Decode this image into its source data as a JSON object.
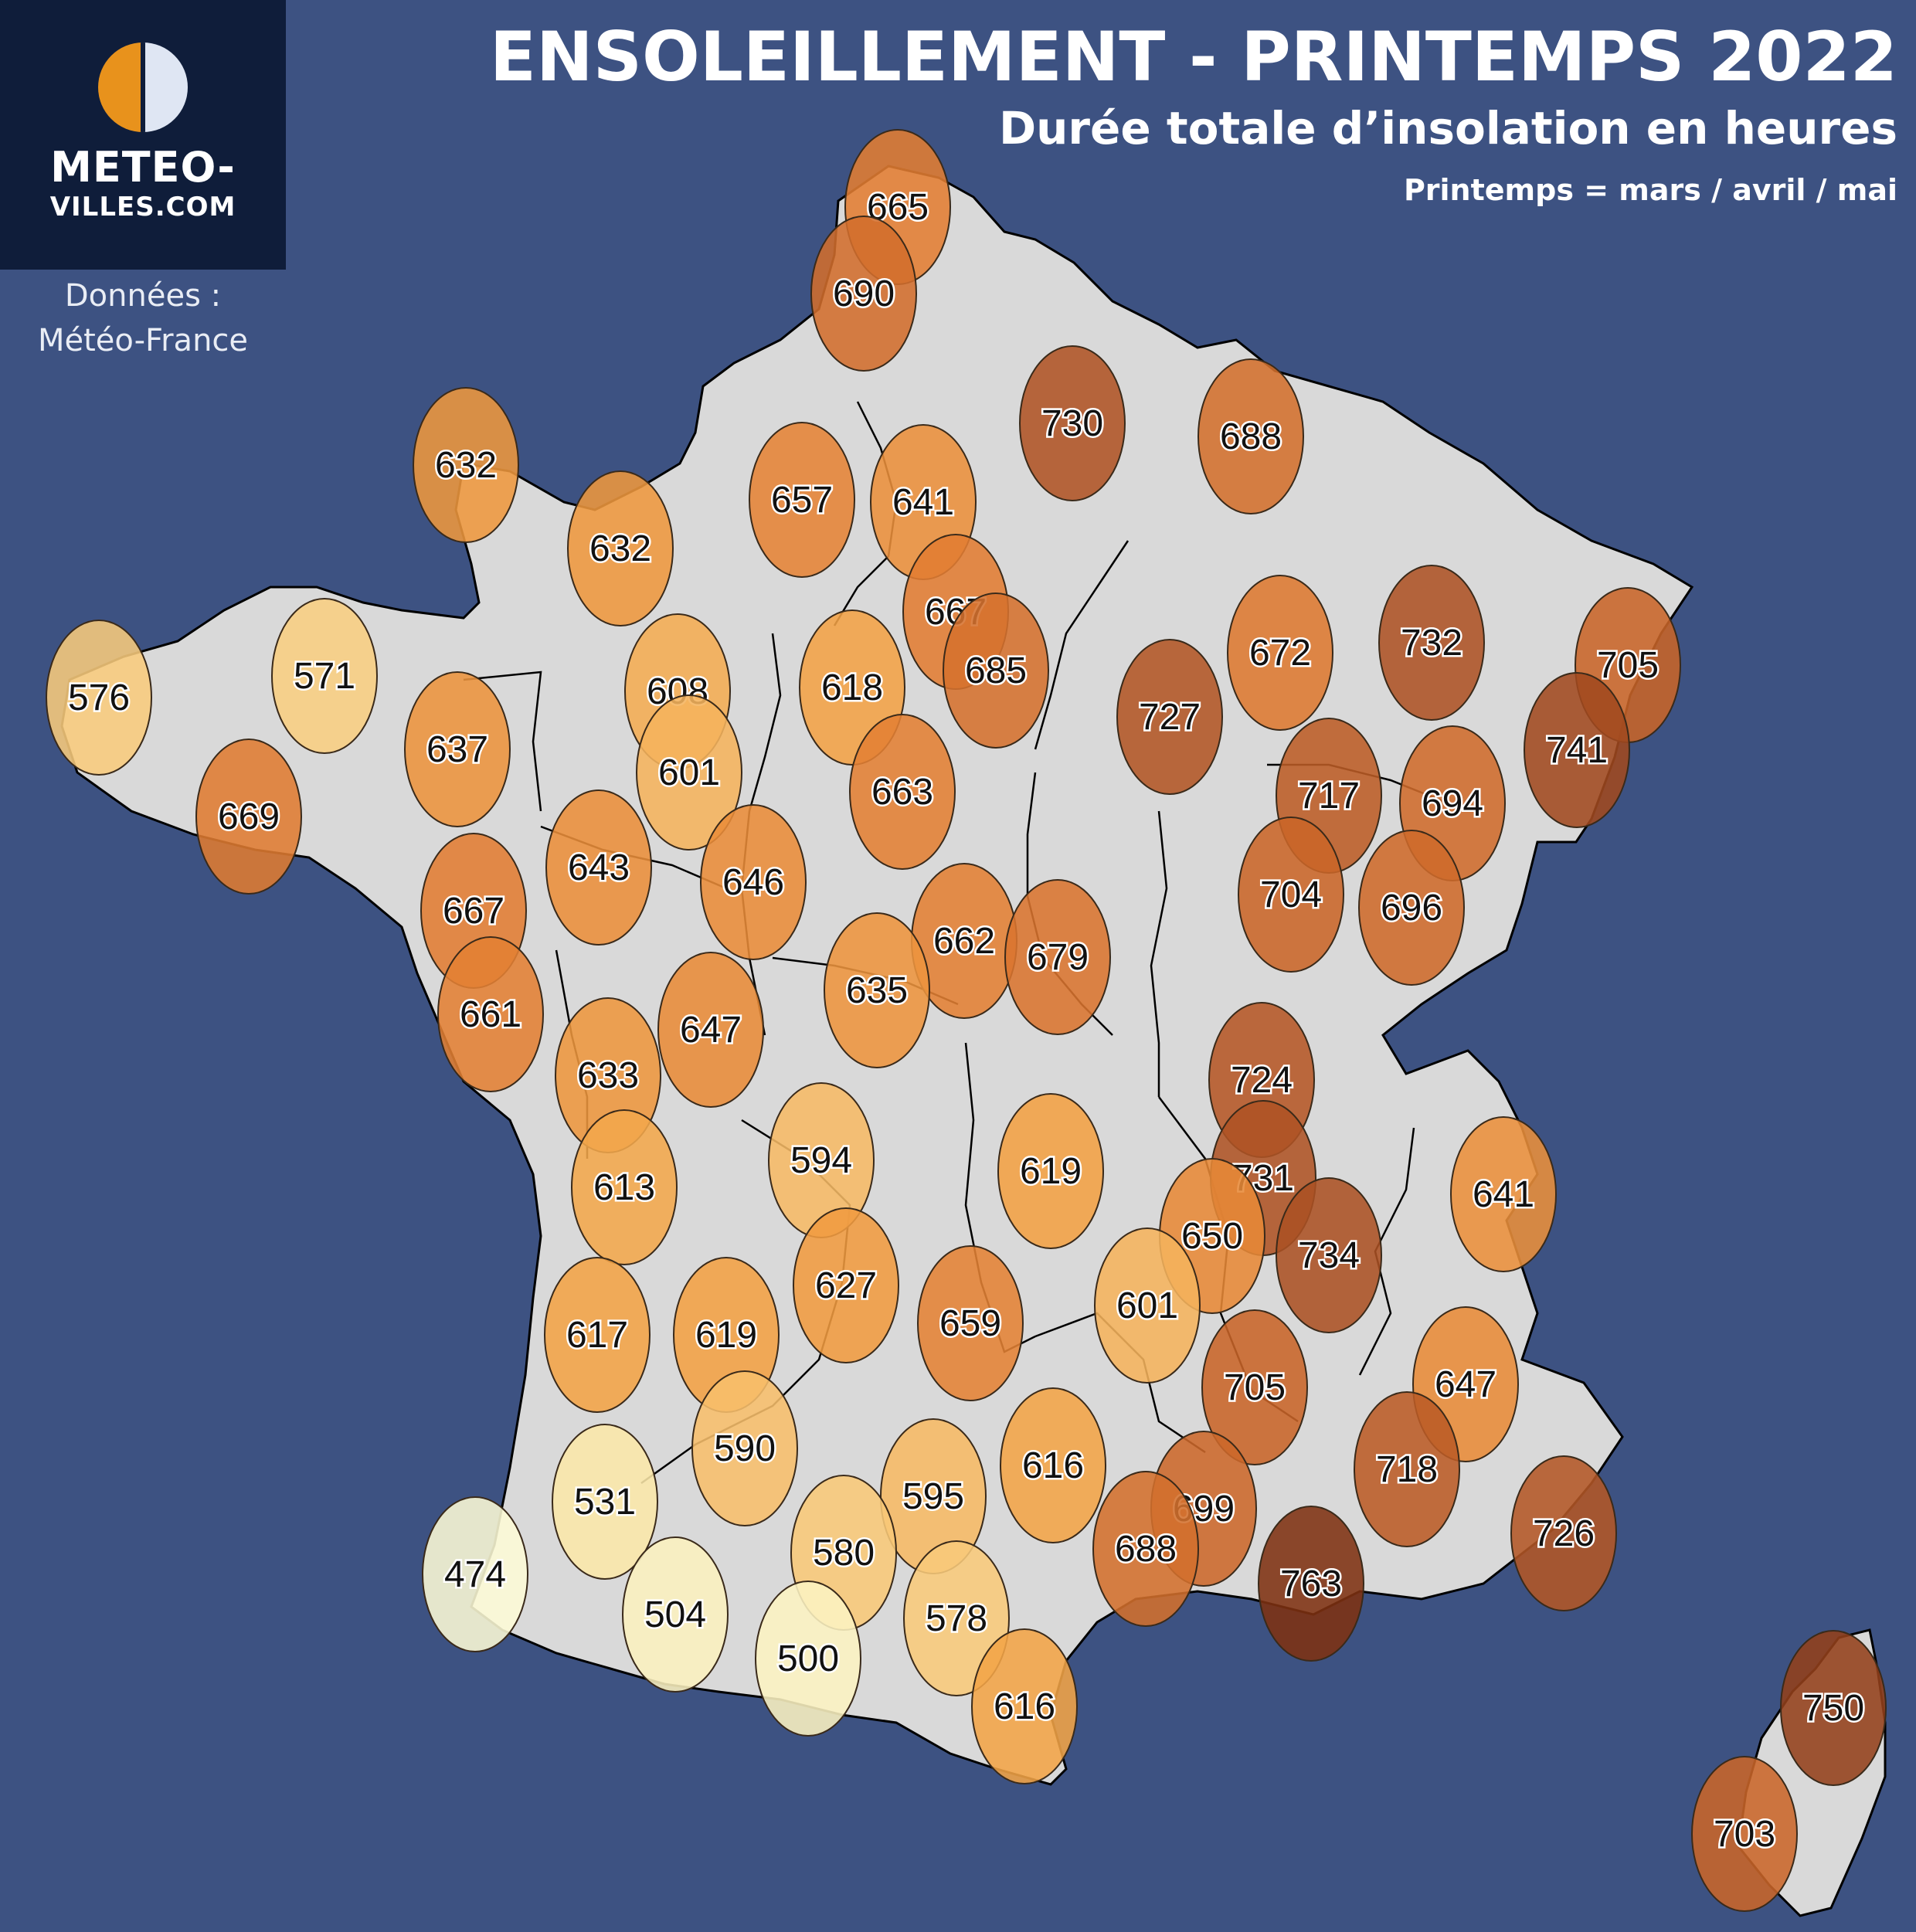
{
  "title": "ENSOLEILLEMENT - PRINTEMPS 2022",
  "subtitle": "Durée totale d’insolation en heures",
  "note": "Printemps = mars / avril / mai",
  "logo": {
    "line1": "METEO-",
    "line2": "VILLES.COM"
  },
  "credit": {
    "line1": "Données :",
    "line2": "Météo-France"
  },
  "colors": {
    "background": "#3d5282",
    "land": "#d9d9d9",
    "low": "#fdfbd9",
    "high": "#7b2f10"
  },
  "stations": [
    {
      "value": 665
    },
    {
      "value": 690
    },
    {
      "value": 730
    },
    {
      "value": 688
    },
    {
      "value": 632
    },
    {
      "value": 632
    },
    {
      "value": 657
    },
    {
      "value": 641
    },
    {
      "value": 667
    },
    {
      "value": 685
    },
    {
      "value": 672
    },
    {
      "value": 732
    },
    {
      "value": 705
    },
    {
      "value": 741
    },
    {
      "value": 576
    },
    {
      "value": 571
    },
    {
      "value": 608
    },
    {
      "value": 618
    },
    {
      "value": 727
    },
    {
      "value": 637
    },
    {
      "value": 601
    },
    {
      "value": 663
    },
    {
      "value": 717
    },
    {
      "value": 694
    },
    {
      "value": 669
    },
    {
      "value": 643
    },
    {
      "value": 646
    },
    {
      "value": 704
    },
    {
      "value": 696
    },
    {
      "value": 667
    },
    {
      "value": 662
    },
    {
      "value": 679
    },
    {
      "value": 635
    },
    {
      "value": 661
    },
    {
      "value": 647
    },
    {
      "value": 633
    },
    {
      "value": 724
    },
    {
      "value": 594
    },
    {
      "value": 619
    },
    {
      "value": 731
    },
    {
      "value": 641
    },
    {
      "value": 613
    },
    {
      "value": 650
    },
    {
      "value": 734
    },
    {
      "value": 627
    },
    {
      "value": 601
    },
    {
      "value": 617
    },
    {
      "value": 619
    },
    {
      "value": 659
    },
    {
      "value": 647
    },
    {
      "value": 705
    },
    {
      "value": 590
    },
    {
      "value": 718
    },
    {
      "value": 616
    },
    {
      "value": 595
    },
    {
      "value": 531
    },
    {
      "value": 699
    },
    {
      "value": 726
    },
    {
      "value": 688
    },
    {
      "value": 580
    },
    {
      "value": 474
    },
    {
      "value": 763
    },
    {
      "value": 504
    },
    {
      "value": 578
    },
    {
      "value": 500
    },
    {
      "value": 616
    },
    {
      "value": 750
    },
    {
      "value": 703
    }
  ]
}
